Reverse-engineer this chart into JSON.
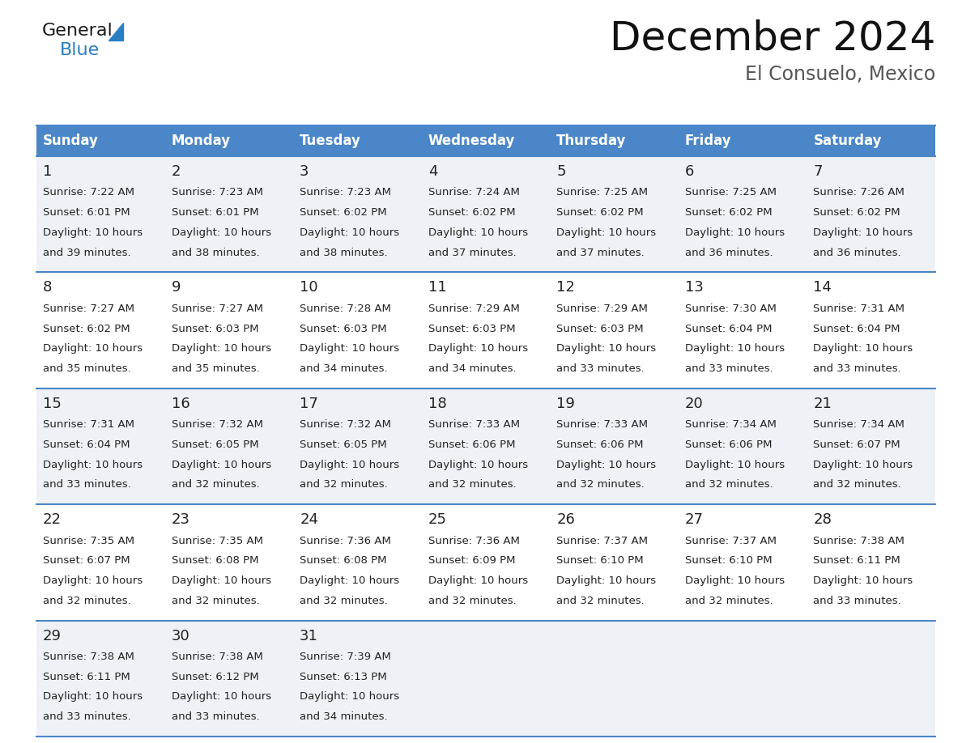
{
  "title": "December 2024",
  "subtitle": "El Consuelo, Mexico",
  "header_bg": "#4a86c8",
  "header_text": "#ffffff",
  "day_names": [
    "Sunday",
    "Monday",
    "Tuesday",
    "Wednesday",
    "Thursday",
    "Friday",
    "Saturday"
  ],
  "cell_bg_odd": "#eef2f7",
  "cell_bg_even": "#ffffff",
  "border_color": "#4a86c8",
  "text_color": "#222222",
  "days": [
    {
      "day": 1,
      "col": 0,
      "row": 0,
      "sunrise": "7:22 AM",
      "sunset": "6:01 PM",
      "dl_min": "39"
    },
    {
      "day": 2,
      "col": 1,
      "row": 0,
      "sunrise": "7:23 AM",
      "sunset": "6:01 PM",
      "dl_min": "38"
    },
    {
      "day": 3,
      "col": 2,
      "row": 0,
      "sunrise": "7:23 AM",
      "sunset": "6:02 PM",
      "dl_min": "38"
    },
    {
      "day": 4,
      "col": 3,
      "row": 0,
      "sunrise": "7:24 AM",
      "sunset": "6:02 PM",
      "dl_min": "37"
    },
    {
      "day": 5,
      "col": 4,
      "row": 0,
      "sunrise": "7:25 AM",
      "sunset": "6:02 PM",
      "dl_min": "37"
    },
    {
      "day": 6,
      "col": 5,
      "row": 0,
      "sunrise": "7:25 AM",
      "sunset": "6:02 PM",
      "dl_min": "36"
    },
    {
      "day": 7,
      "col": 6,
      "row": 0,
      "sunrise": "7:26 AM",
      "sunset": "6:02 PM",
      "dl_min": "36"
    },
    {
      "day": 8,
      "col": 0,
      "row": 1,
      "sunrise": "7:27 AM",
      "sunset": "6:02 PM",
      "dl_min": "35"
    },
    {
      "day": 9,
      "col": 1,
      "row": 1,
      "sunrise": "7:27 AM",
      "sunset": "6:03 PM",
      "dl_min": "35"
    },
    {
      "day": 10,
      "col": 2,
      "row": 1,
      "sunrise": "7:28 AM",
      "sunset": "6:03 PM",
      "dl_min": "34"
    },
    {
      "day": 11,
      "col": 3,
      "row": 1,
      "sunrise": "7:29 AM",
      "sunset": "6:03 PM",
      "dl_min": "34"
    },
    {
      "day": 12,
      "col": 4,
      "row": 1,
      "sunrise": "7:29 AM",
      "sunset": "6:03 PM",
      "dl_min": "33"
    },
    {
      "day": 13,
      "col": 5,
      "row": 1,
      "sunrise": "7:30 AM",
      "sunset": "6:04 PM",
      "dl_min": "33"
    },
    {
      "day": 14,
      "col": 6,
      "row": 1,
      "sunrise": "7:31 AM",
      "sunset": "6:04 PM",
      "dl_min": "33"
    },
    {
      "day": 15,
      "col": 0,
      "row": 2,
      "sunrise": "7:31 AM",
      "sunset": "6:04 PM",
      "dl_min": "33"
    },
    {
      "day": 16,
      "col": 1,
      "row": 2,
      "sunrise": "7:32 AM",
      "sunset": "6:05 PM",
      "dl_min": "32"
    },
    {
      "day": 17,
      "col": 2,
      "row": 2,
      "sunrise": "7:32 AM",
      "sunset": "6:05 PM",
      "dl_min": "32"
    },
    {
      "day": 18,
      "col": 3,
      "row": 2,
      "sunrise": "7:33 AM",
      "sunset": "6:06 PM",
      "dl_min": "32"
    },
    {
      "day": 19,
      "col": 4,
      "row": 2,
      "sunrise": "7:33 AM",
      "sunset": "6:06 PM",
      "dl_min": "32"
    },
    {
      "day": 20,
      "col": 5,
      "row": 2,
      "sunrise": "7:34 AM",
      "sunset": "6:06 PM",
      "dl_min": "32"
    },
    {
      "day": 21,
      "col": 6,
      "row": 2,
      "sunrise": "7:34 AM",
      "sunset": "6:07 PM",
      "dl_min": "32"
    },
    {
      "day": 22,
      "col": 0,
      "row": 3,
      "sunrise": "7:35 AM",
      "sunset": "6:07 PM",
      "dl_min": "32"
    },
    {
      "day": 23,
      "col": 1,
      "row": 3,
      "sunrise": "7:35 AM",
      "sunset": "6:08 PM",
      "dl_min": "32"
    },
    {
      "day": 24,
      "col": 2,
      "row": 3,
      "sunrise": "7:36 AM",
      "sunset": "6:08 PM",
      "dl_min": "32"
    },
    {
      "day": 25,
      "col": 3,
      "row": 3,
      "sunrise": "7:36 AM",
      "sunset": "6:09 PM",
      "dl_min": "32"
    },
    {
      "day": 26,
      "col": 4,
      "row": 3,
      "sunrise": "7:37 AM",
      "sunset": "6:10 PM",
      "dl_min": "32"
    },
    {
      "day": 27,
      "col": 5,
      "row": 3,
      "sunrise": "7:37 AM",
      "sunset": "6:10 PM",
      "dl_min": "32"
    },
    {
      "day": 28,
      "col": 6,
      "row": 3,
      "sunrise": "7:38 AM",
      "sunset": "6:11 PM",
      "dl_min": "33"
    },
    {
      "day": 29,
      "col": 0,
      "row": 4,
      "sunrise": "7:38 AM",
      "sunset": "6:11 PM",
      "dl_min": "33"
    },
    {
      "day": 30,
      "col": 1,
      "row": 4,
      "sunrise": "7:38 AM",
      "sunset": "6:12 PM",
      "dl_min": "33"
    },
    {
      "day": 31,
      "col": 2,
      "row": 4,
      "sunrise": "7:39 AM",
      "sunset": "6:13 PM",
      "dl_min": "34"
    }
  ],
  "logo_text1": "General",
  "logo_text2": "Blue",
  "logo_color1": "#1a1a1a",
  "logo_color2": "#2a7fc4",
  "logo_triangle_color": "#2a7fc4",
  "title_fontsize": 36,
  "subtitle_fontsize": 17,
  "header_fontsize": 12,
  "daynum_fontsize": 13,
  "info_fontsize": 9.5
}
